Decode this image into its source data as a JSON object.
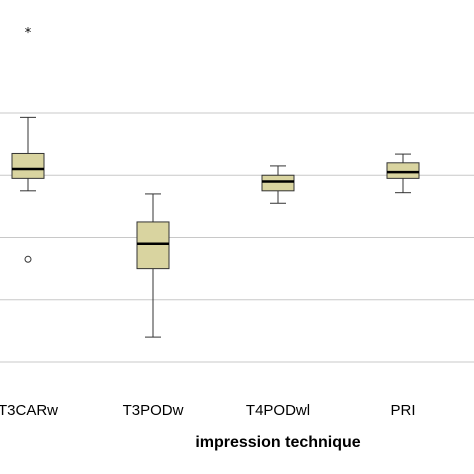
{
  "chart_data": {
    "type": "boxplot",
    "xlabel": "impression technique",
    "ylabel": "",
    "title": "",
    "categories": [
      "T3CARw",
      "T3PODw",
      "T4PODwl",
      "PRI"
    ],
    "ylim": [
      0,
      6.2
    ],
    "gridlines": [
      0,
      1,
      2,
      3,
      4
    ],
    "grid": true,
    "fill_color": "#d9d4a0",
    "box_stroke": "#333333",
    "grid_color": "#c8c8c8",
    "boxes": [
      {
        "category": "T3CARw",
        "min": 2.75,
        "q1": 2.95,
        "median": 3.1,
        "q3": 3.35,
        "max": 3.93,
        "outliers": [
          1.65
        ],
        "extremes": [
          5.3
        ]
      },
      {
        "category": "T3PODw",
        "min": 0.4,
        "q1": 1.5,
        "median": 1.9,
        "q3": 2.25,
        "max": 2.7,
        "outliers": [],
        "extremes": []
      },
      {
        "category": "T4PODwl",
        "min": 2.55,
        "q1": 2.75,
        "median": 2.9,
        "q3": 3.0,
        "max": 3.15,
        "outliers": [],
        "extremes": []
      },
      {
        "category": "PRI",
        "min": 2.72,
        "q1": 2.95,
        "median": 3.05,
        "q3": 3.2,
        "max": 3.34,
        "outliers": [],
        "extremes": []
      }
    ]
  }
}
